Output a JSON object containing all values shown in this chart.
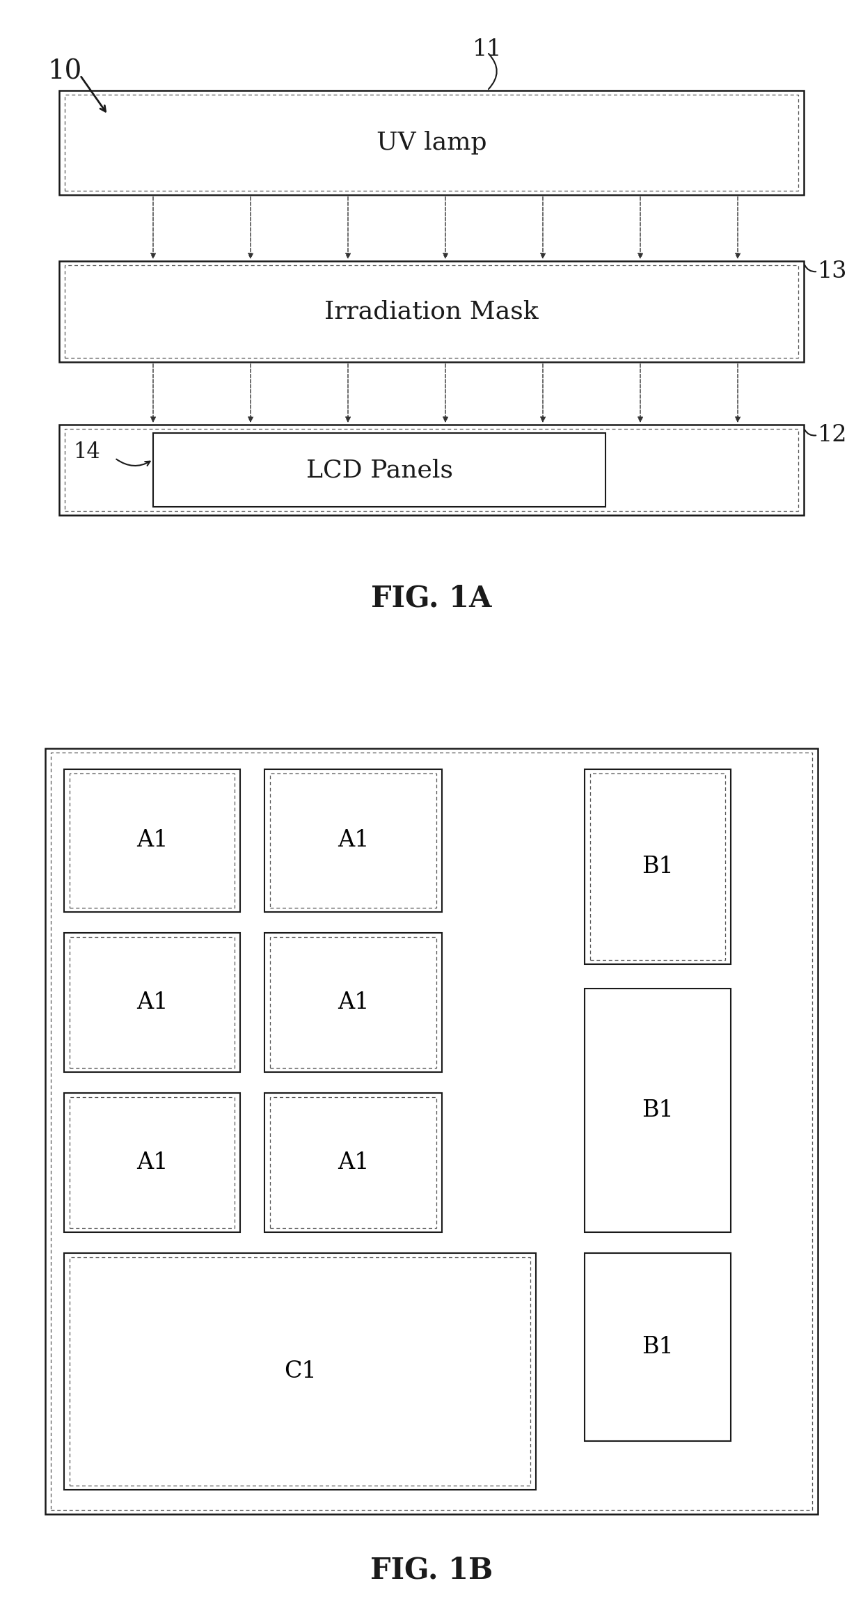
{
  "fig_width": 12.4,
  "fig_height": 23.17,
  "bg_color": "#ffffff",
  "fig1a": {
    "title": "FIG. 1A",
    "uv_lamp_text": "UV lamp",
    "irr_mask_text": "Irradiation Mask",
    "lcd_panels_text": "LCD Panels",
    "label_10": "10",
    "label_11": "11",
    "label_12": "12",
    "label_13": "13",
    "label_14": "14"
  },
  "fig1b": {
    "title": "FIG. 1B"
  }
}
